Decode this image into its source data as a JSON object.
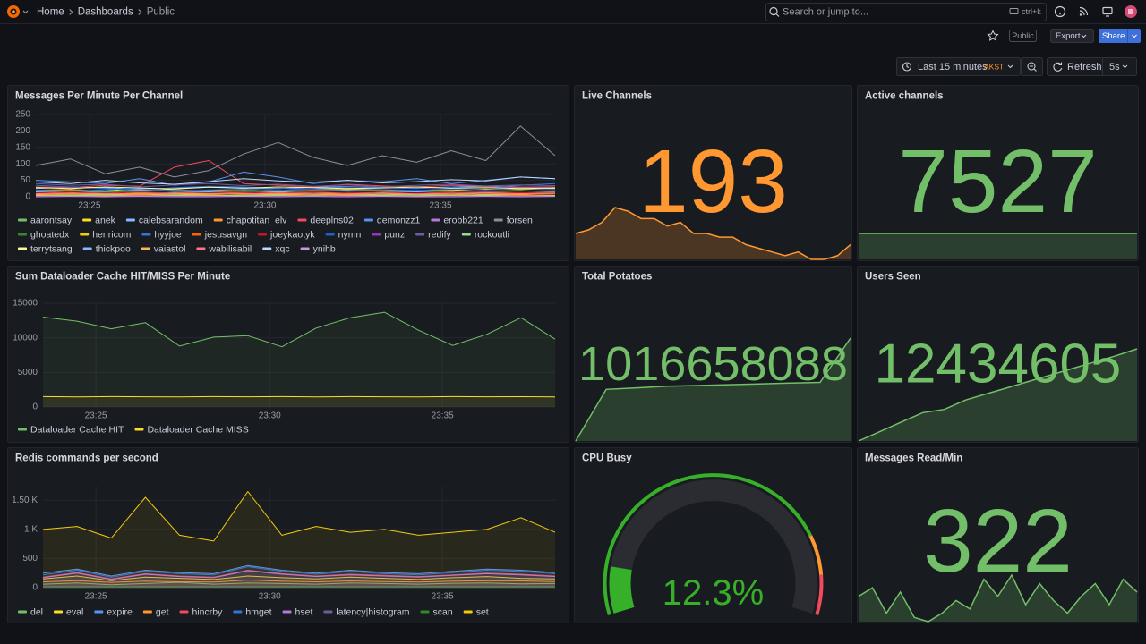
{
  "header": {
    "breadcrumbs": [
      "Home",
      "Dashboards",
      "Public"
    ],
    "search": "Search or jump to...",
    "shortcut": "ctrl+k"
  },
  "toolbar": {
    "visibility": "Public",
    "export": "Export",
    "share": "Share"
  },
  "time_controls": {
    "range": "Last 15 minutes",
    "timezone": "AKST",
    "refresh": "Refresh",
    "interval": "5s"
  },
  "chart_data": [
    {
      "type": "line",
      "title": "Messages Per Minute Per Channel",
      "ylim": [
        0,
        250
      ],
      "yticks": [
        0,
        50,
        100,
        150,
        200,
        250
      ],
      "grid": true,
      "xticks": [
        {
          "value": 1.55,
          "label": "23:25"
        },
        {
          "value": 6.62,
          "label": "23:30"
        },
        {
          "value": 11.69,
          "label": "23:35"
        }
      ],
      "series": [
        {
          "name": "aarontsay",
          "color": "#73bf69",
          "values": [
            5,
            8,
            6,
            10,
            7,
            9,
            12,
            8,
            6,
            9,
            10,
            8,
            7,
            11,
            9,
            10
          ]
        },
        {
          "name": "anek",
          "color": "#fade2a",
          "values": [
            20,
            22,
            18,
            25,
            21,
            19,
            23,
            20,
            22,
            24,
            21,
            18,
            20,
            23,
            22,
            25
          ]
        },
        {
          "name": "calebsarandom",
          "color": "#8ab8ff",
          "values": [
            25,
            30,
            28,
            22,
            26,
            30,
            27,
            25,
            29,
            31,
            28,
            26,
            30,
            32,
            29,
            30
          ]
        },
        {
          "name": "chapotitan_elv",
          "color": "#ff9830",
          "values": [
            10,
            12,
            15,
            11,
            13,
            10,
            12,
            14,
            11,
            13,
            12,
            10,
            14,
            13,
            11,
            12
          ]
        },
        {
          "name": "deeplns02",
          "color": "#f2495c",
          "values": [
            30,
            28,
            35,
            32,
            90,
            110,
            40,
            35,
            30,
            38,
            33,
            30,
            35,
            32,
            28,
            30
          ]
        },
        {
          "name": "demonzz1",
          "color": "#5794f2",
          "values": [
            50,
            45,
            40,
            55,
            35,
            45,
            75,
            60,
            40,
            50,
            45,
            55,
            40,
            50,
            60,
            55
          ]
        },
        {
          "name": "erobb221",
          "color": "#b877d9",
          "values": [
            2,
            3,
            2,
            4,
            3,
            2,
            3,
            4,
            2,
            3,
            2,
            3,
            4,
            3,
            2,
            3
          ]
        },
        {
          "name": "forsen",
          "color": "#8e8e99",
          "values": [
            95,
            115,
            70,
            90,
            60,
            80,
            130,
            165,
            120,
            95,
            125,
            105,
            140,
            110,
            215,
            125
          ]
        },
        {
          "name": "ghoatedx",
          "color": "#37872d",
          "values": [
            15,
            18,
            14,
            16,
            20,
            17,
            15,
            18,
            16,
            19,
            17,
            15,
            18,
            16,
            17,
            19
          ]
        },
        {
          "name": "henricom",
          "color": "#f2cc0c",
          "values": [
            8,
            10,
            9,
            12,
            10,
            8,
            11,
            9,
            10,
            12,
            11,
            9,
            10,
            11,
            12,
            10
          ]
        },
        {
          "name": "hyyjoe",
          "color": "#3274d9",
          "values": [
            35,
            30,
            25,
            20,
            28,
            32,
            30,
            26,
            24,
            30,
            28,
            25,
            30,
            27,
            35,
            40
          ]
        },
        {
          "name": "jesusavgn",
          "color": "#fa6400",
          "values": [
            3,
            4,
            5,
            3,
            4,
            6,
            5,
            4,
            3,
            5,
            4,
            3,
            4,
            5,
            4,
            3
          ]
        },
        {
          "name": "joeykaotyk",
          "color": "#c4162a",
          "values": [
            12,
            15,
            10,
            14,
            12,
            16,
            13,
            11,
            15,
            12,
            14,
            10,
            13,
            15,
            12,
            14
          ]
        },
        {
          "name": "nymn",
          "color": "#1f60c4",
          "values": [
            20,
            18,
            22,
            25,
            19,
            21,
            24,
            20,
            23,
            26,
            22,
            20,
            24,
            21,
            25,
            23
          ]
        },
        {
          "name": "punz",
          "color": "#8f3bb8",
          "values": [
            1,
            2,
            1,
            2,
            1,
            1,
            2,
            1,
            2,
            1,
            2,
            1,
            1,
            2,
            1,
            2
          ]
        },
        {
          "name": "redify",
          "color": "#705da0",
          "values": [
            40,
            35,
            38,
            30,
            36,
            40,
            34,
            38,
            32,
            36,
            30,
            35,
            38,
            33,
            36,
            34
          ]
        },
        {
          "name": "rockoutli",
          "color": "#96d98d",
          "values": [
            6,
            5,
            7,
            6,
            8,
            5,
            6,
            7,
            5,
            6,
            7,
            6,
            5,
            7,
            6,
            5
          ]
        },
        {
          "name": "terrytsang",
          "color": "#fff899",
          "values": [
            28,
            25,
            30,
            27,
            24,
            29,
            26,
            30,
            28,
            25,
            27,
            30,
            26,
            28,
            25,
            27
          ]
        },
        {
          "name": "thickpoo",
          "color": "#8ab8ff",
          "values": [
            15,
            18,
            16,
            20,
            17,
            15,
            19,
            16,
            18,
            20,
            17,
            15,
            19,
            17,
            18,
            16
          ]
        },
        {
          "name": "vaiastol",
          "color": "#ffb357",
          "values": [
            4,
            5,
            3,
            6,
            4,
            5,
            3,
            4,
            6,
            5,
            4,
            3,
            5,
            4,
            6,
            4
          ]
        },
        {
          "name": "wabilisabil",
          "color": "#ff7383",
          "values": [
            9,
            11,
            10,
            8,
            12,
            10,
            9,
            11,
            10,
            8,
            12,
            9,
            11,
            10,
            9,
            11
          ]
        },
        {
          "name": "xqc",
          "color": "#c0d8ff",
          "values": [
            45,
            40,
            50,
            42,
            38,
            46,
            55,
            48,
            44,
            50,
            42,
            46,
            52,
            48,
            60,
            55
          ]
        },
        {
          "name": "ynihb",
          "color": "#ca95e5",
          "values": [
            0,
            1,
            0,
            1,
            0,
            0,
            1,
            0,
            1,
            0,
            1,
            0,
            0,
            1,
            0,
            1
          ]
        }
      ]
    },
    {
      "type": "stat",
      "title": "Live Channels",
      "value": 193,
      "color": "#ff9830",
      "sparkline": [
        196,
        197,
        199,
        203,
        202,
        200,
        200,
        198,
        199,
        196,
        196,
        195,
        195,
        193,
        192,
        191,
        190,
        191,
        189,
        189,
        190,
        193
      ]
    },
    {
      "type": "stat",
      "title": "Active channels",
      "value": 7527,
      "color": "#73bf69",
      "sparkline": [
        7527,
        7527,
        7527,
        7527,
        7527,
        7527,
        7527,
        7527
      ]
    },
    {
      "type": "line",
      "title": "Sum Dataloader Cache HIT/MISS Per Minute",
      "fill": true,
      "ylim": [
        0,
        15000
      ],
      "yticks": [
        0,
        5000,
        10000,
        15000
      ],
      "grid": true,
      "xticks": [
        {
          "value": 1.55,
          "label": "23:25"
        },
        {
          "value": 6.64,
          "label": "23:30"
        },
        {
          "value": 11.7,
          "label": "23:35"
        }
      ],
      "series": [
        {
          "name": "Dataloader Cache HIT",
          "color": "#73bf69",
          "values": [
            13000,
            12400,
            11300,
            12200,
            8800,
            10100,
            10300,
            8700,
            11400,
            12900,
            13700,
            11100,
            8900,
            10500,
            12900,
            9800
          ]
        },
        {
          "name": "Dataloader Cache MISS",
          "color": "#fade2a",
          "values": [
            1500,
            1450,
            1500,
            1480,
            1450,
            1500,
            1470,
            1500,
            1460,
            1500,
            1480,
            1450,
            1500,
            1470,
            1490,
            1460
          ]
        }
      ]
    },
    {
      "type": "stat",
      "title": "Total Potatoes",
      "value": 1016658088,
      "color": "#73bf69",
      "sparkline": [
        1016000000,
        1016330000,
        1016340000,
        1016350000,
        1016355000,
        1016360000,
        1016365000,
        1016370000,
        1016375000,
        1016658088
      ]
    },
    {
      "type": "stat",
      "title": "Users Seen",
      "value": 12434605,
      "color": "#73bf69",
      "sparkline": [
        12420000,
        12421500,
        12423000,
        12424500,
        12425000,
        12426500,
        12427500,
        12428500,
        12429500,
        12430500,
        12431500,
        12432500,
        12433500,
        12434605
      ]
    },
    {
      "type": "line",
      "title": "Redis commands per second",
      "fill": true,
      "ylim": [
        0,
        1750
      ],
      "yticks": [
        0,
        500,
        {
          "value": 1000,
          "label": "1 K"
        },
        {
          "value": 1500,
          "label": "1.50 K"
        }
      ],
      "grid": true,
      "xticks": [
        {
          "value": 1.55,
          "label": "23:25"
        },
        {
          "value": 6.64,
          "label": "23:30"
        },
        {
          "value": 11.7,
          "label": "23:35"
        }
      ],
      "series": [
        {
          "name": "del",
          "color": "#73bf69",
          "values": [
            60,
            80,
            50,
            70,
            90,
            60,
            80,
            70,
            60,
            80,
            70,
            60,
            75,
            80,
            65,
            70
          ]
        },
        {
          "name": "eval",
          "color": "#fade2a",
          "values": [
            150,
            200,
            120,
            180,
            160,
            140,
            200,
            170,
            150,
            180,
            160,
            140,
            170,
            190,
            160,
            150
          ]
        },
        {
          "name": "expire",
          "color": "#5794f2",
          "values": [
            250,
            320,
            200,
            300,
            260,
            240,
            380,
            300,
            250,
            300,
            260,
            240,
            280,
            320,
            300,
            260
          ]
        },
        {
          "name": "get",
          "color": "#ff9830",
          "values": [
            100,
            120,
            90,
            110,
            100,
            95,
            130,
            110,
            100,
            115,
            105,
            95,
            110,
            120,
            115,
            105
          ]
        },
        {
          "name": "hincrby",
          "color": "#f2495c",
          "values": [
            180,
            260,
            150,
            240,
            200,
            180,
            300,
            240,
            200,
            230,
            210,
            190,
            220,
            250,
            230,
            200
          ]
        },
        {
          "name": "hmget",
          "color": "#3274d9",
          "values": [
            220,
            300,
            180,
            280,
            240,
            220,
            360,
            280,
            230,
            280,
            240,
            220,
            260,
            300,
            280,
            240
          ]
        },
        {
          "name": "hset",
          "color": "#b877d9",
          "values": [
            170,
            250,
            140,
            230,
            190,
            170,
            290,
            230,
            190,
            220,
            200,
            180,
            210,
            240,
            220,
            190
          ]
        },
        {
          "name": "latency|histogram",
          "color": "#705da0",
          "values": [
            20,
            22,
            20,
            21,
            20,
            22,
            21,
            20,
            22,
            21,
            20,
            21,
            22,
            20,
            21,
            20
          ]
        },
        {
          "name": "scan",
          "color": "#37872d",
          "values": [
            5,
            5,
            5,
            5,
            5,
            5,
            5,
            5,
            5,
            5,
            5,
            5,
            5,
            5,
            5,
            5
          ]
        },
        {
          "name": "set",
          "color": "#f2cc0c",
          "values": [
            1000,
            1050,
            850,
            1550,
            900,
            800,
            1650,
            900,
            1050,
            950,
            1000,
            900,
            950,
            1000,
            1200,
            950
          ]
        }
      ]
    },
    {
      "type": "gauge",
      "title": "CPU Busy",
      "value": 12.3,
      "value_label": "12.3%",
      "range": [
        0,
        100
      ],
      "color": "#37b029",
      "thresholds": [
        {
          "value": 0,
          "color": "#37b029"
        },
        {
          "value": 80,
          "color": "#ff9830"
        },
        {
          "value": 90,
          "color": "#f2495c"
        }
      ]
    },
    {
      "type": "stat",
      "title": "Messages Read/Min",
      "value": 322,
      "color": "#73bf69",
      "sparkline": [
        300,
        320,
        260,
        310,
        250,
        240,
        260,
        290,
        270,
        340,
        300,
        350,
        280,
        330,
        290,
        260,
        300,
        330,
        280,
        340,
        310
      ]
    }
  ]
}
